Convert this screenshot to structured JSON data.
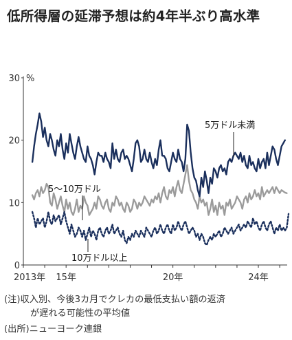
{
  "chart_data": {
    "type": "line",
    "title": "低所得層の延滞予想は約4年半ぶり高水準",
    "y_unit": "%",
    "ylim": [
      0,
      30
    ],
    "y_ticks": [
      0,
      10,
      20,
      30
    ],
    "x_ticks": [
      {
        "year": 2013,
        "label": "2013年"
      },
      {
        "year": 2015,
        "label": "15年"
      },
      {
        "year": 2020,
        "label": "20年"
      },
      {
        "year": 2024,
        "label": "24年"
      }
    ],
    "xlim": [
      2013.0,
      2025.35
    ],
    "grid": false,
    "legend": "direct labels on lines",
    "x_start": 2013.42,
    "x_step": 0.0833,
    "series": [
      {
        "name": "5万ドル未満",
        "color": "#1a2f5c",
        "style": "solid",
        "values": [
          16.5,
          19.0,
          21.0,
          22.5,
          24.3,
          23.0,
          20.5,
          22.0,
          20.0,
          19.0,
          21.0,
          20.0,
          18.5,
          17.5,
          20.0,
          19.0,
          21.0,
          18.5,
          17.0,
          19.5,
          18.0,
          21.0,
          19.5,
          18.0,
          17.0,
          19.0,
          20.5,
          19.0,
          18.0,
          17.0,
          16.5,
          19.0,
          17.5,
          17.0,
          16.0,
          14.5,
          16.5,
          18.0,
          17.5,
          17.5,
          16.5,
          18.0,
          17.0,
          16.5,
          15.5,
          19.5,
          17.0,
          18.5,
          17.0,
          16.5,
          18.0,
          18.5,
          17.0,
          17.5,
          17.0,
          16.0,
          15.0,
          17.0,
          19.5,
          20.0,
          19.0,
          16.5,
          17.0,
          18.5,
          17.0,
          16.5,
          18.0,
          16.5,
          15.5,
          17.0,
          16.0,
          18.5,
          20.0,
          17.5,
          17.5,
          17.0,
          15.5,
          15.0,
          16.5,
          18.0,
          17.0,
          16.5,
          18.5,
          17.0,
          16.5,
          15.0,
          17.0,
          22.5,
          21.5,
          18.0,
          15.5,
          14.0,
          13.5,
          12.0,
          11.0,
          14.0,
          12.5,
          15.0,
          13.5,
          11.5,
          14.0,
          13.0,
          15.5,
          15.0,
          14.0,
          15.5,
          16.0,
          15.0,
          15.5,
          14.5,
          16.5,
          17.0,
          16.5,
          17.5,
          18.0,
          17.5,
          17.0,
          18.0,
          16.5,
          17.5,
          16.0,
          15.5,
          17.5,
          16.0,
          16.5,
          15.5,
          15.0,
          17.0,
          15.5,
          16.5,
          17.0,
          15.5,
          18.0,
          16.0,
          17.5,
          19.0,
          18.5,
          17.0,
          16.0,
          17.5,
          19.0,
          19.5,
          20.0
        ]
      },
      {
        "name": "5～10万ドル",
        "color": "#9b9b9b",
        "style": "solid",
        "values": [
          11.2,
          10.5,
          11.5,
          12.0,
          11.0,
          12.5,
          11.5,
          12.0,
          13.0,
          12.5,
          10.0,
          9.5,
          11.5,
          10.5,
          9.0,
          10.0,
          11.0,
          9.5,
          8.5,
          10.5,
          9.0,
          10.0,
          8.5,
          8.0,
          9.0,
          10.5,
          8.5,
          9.5,
          9.0,
          11.0,
          10.0,
          9.5,
          8.0,
          8.5,
          9.0,
          10.0,
          9.0,
          11.0,
          10.5,
          9.5,
          9.0,
          10.0,
          10.5,
          9.0,
          8.5,
          10.0,
          9.5,
          11.0,
          10.5,
          9.5,
          10.0,
          9.0,
          8.5,
          10.0,
          9.5,
          8.5,
          9.0,
          10.5,
          10.0,
          9.0,
          10.0,
          9.5,
          10.0,
          11.0,
          10.5,
          10.0,
          9.5,
          10.5,
          10.0,
          11.0,
          10.5,
          11.5,
          10.0,
          11.5,
          12.5,
          11.0,
          10.5,
          12.0,
          11.5,
          12.5,
          11.0,
          12.5,
          13.5,
          12.0,
          11.5,
          13.0,
          14.5,
          16.0,
          13.5,
          12.0,
          11.5,
          10.5,
          10.0,
          9.0,
          11.0,
          10.0,
          10.5,
          9.5,
          10.0,
          8.0,
          9.0,
          10.5,
          8.5,
          9.5,
          8.0,
          10.0,
          9.0,
          9.5,
          8.0,
          10.0,
          9.5,
          10.5,
          9.0,
          9.5,
          10.0,
          11.0,
          10.5,
          10.0,
          9.0,
          10.5,
          11.0,
          10.0,
          11.5,
          10.5,
          11.0,
          12.0,
          11.0,
          11.5,
          10.5,
          12.5,
          11.0,
          11.5,
          12.0,
          11.5,
          12.0,
          12.5,
          11.5,
          12.5,
          12.0,
          11.5,
          12.0,
          11.8,
          11.6,
          11.5
        ]
      },
      {
        "name": "10万ドル以上",
        "color": "#1a2f5c",
        "style": "dotted",
        "values": [
          8.5,
          7.5,
          6.0,
          7.5,
          6.5,
          7.0,
          7.5,
          6.0,
          7.0,
          8.5,
          7.0,
          6.5,
          8.0,
          7.0,
          7.5,
          8.0,
          6.5,
          7.5,
          8.5,
          7.0,
          6.0,
          5.0,
          6.5,
          5.5,
          4.5,
          5.0,
          6.0,
          5.5,
          4.5,
          5.5,
          4.0,
          5.0,
          6.0,
          4.5,
          5.5,
          5.0,
          4.0,
          5.5,
          6.0,
          5.0,
          4.5,
          5.5,
          6.0,
          5.0,
          5.5,
          6.5,
          5.0,
          5.5,
          6.0,
          5.0,
          4.5,
          5.5,
          4.0,
          3.5,
          4.5,
          4.0,
          5.0,
          4.5,
          5.5,
          5.0,
          4.5,
          5.5,
          5.0,
          4.5,
          6.0,
          5.5,
          5.0,
          4.5,
          5.5,
          6.0,
          5.0,
          5.5,
          6.5,
          5.5,
          5.0,
          6.0,
          6.5,
          5.5,
          5.0,
          6.5,
          5.5,
          6.0,
          7.0,
          6.0,
          5.5,
          6.5,
          7.0,
          6.0,
          5.0,
          5.5,
          6.0,
          5.5,
          4.5,
          5.0,
          4.0,
          5.0,
          4.5,
          3.5,
          3.2,
          4.0,
          4.5,
          4.0,
          5.0,
          4.5,
          5.0,
          5.5,
          4.5,
          5.0,
          6.0,
          5.5,
          5.0,
          5.5,
          6.0,
          5.0,
          5.5,
          6.0,
          6.5,
          5.5,
          6.0,
          6.5,
          6.0,
          7.0,
          6.5,
          6.0,
          7.5,
          6.5,
          7.0,
          6.0,
          5.5,
          6.5,
          7.0,
          6.0,
          5.5,
          6.5,
          7.0,
          6.0,
          5.0,
          6.0,
          5.5,
          6.5,
          5.5,
          6.0,
          5.5,
          6.0,
          8.2
        ]
      }
    ],
    "annotations": [
      {
        "text": "5万ドル未満"
      },
      {
        "text": "5～10万ドル"
      },
      {
        "text": "10万ドル以上"
      }
    ]
  },
  "notes": {
    "note_line1": "(注)収入別、今後3カ月でクレカの最低支払い額の返済",
    "note_line2": "が遅れる可能性の平均値",
    "source": "(出所)ニューヨーク連銀"
  }
}
